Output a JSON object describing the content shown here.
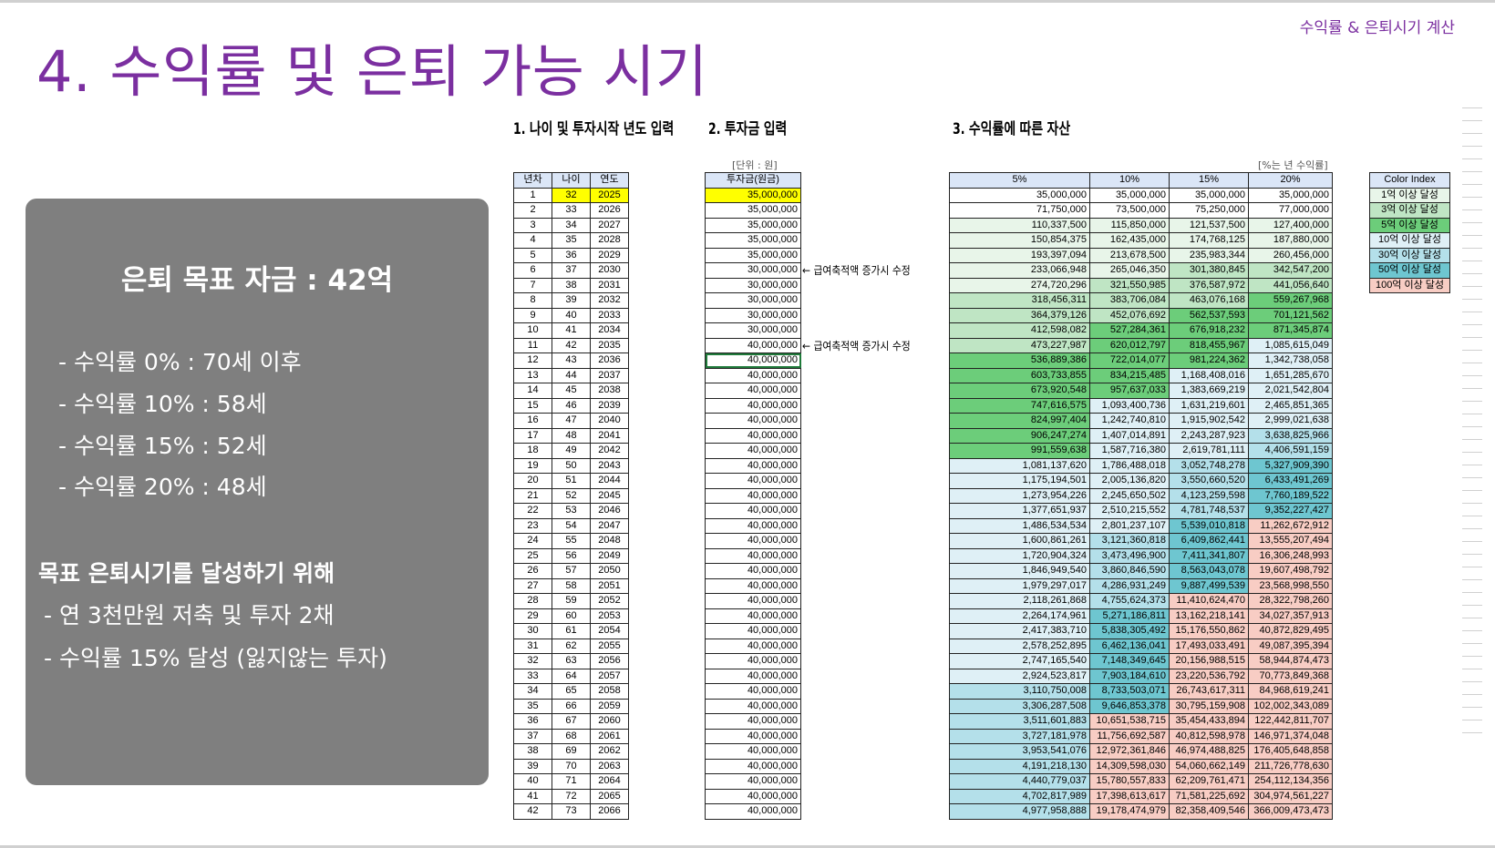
{
  "header": {
    "top_label": "수익률 & 은퇴시기 계산",
    "title": "4. 수익률 및 은퇴 가능 시기"
  },
  "summary": {
    "goal": "은퇴 목표 자금 : 42억",
    "rates": [
      "- 수익률   0% : 70세 이후",
      "- 수익률 10% : 58세",
      "- 수익률 15% : 52세",
      "- 수익률 20% : 48세"
    ],
    "plan_heading": "목표 은퇴시기를 달성하기 위해",
    "plan_items": [
      "- 연 3천만원 저축 및 투자 2채",
      "- 수익률 15% 달성 (잃지않는 투자)"
    ]
  },
  "sections": {
    "s1": "1. 나이 및 투자시작 년도 입력",
    "s2": "2. 투자금 입력",
    "s3": "3. 수익률에 따른 자산",
    "unit": "[단위 : 원]",
    "pct_note": "[%는 년 수익률]"
  },
  "table1": {
    "headers": [
      "년차",
      "나이",
      "연도"
    ]
  },
  "table2": {
    "header": "투자금(원금)",
    "notes": [
      "← 급여축적액 증가시 수정",
      "← 급여축적액 증가시 수정"
    ]
  },
  "table3": {
    "headers": [
      "5%",
      "10%",
      "15%",
      "20%"
    ],
    "rows": [
      [
        "35,000,000",
        "35,000,000",
        "35,000,000",
        "35,000,000"
      ],
      [
        "71,750,000",
        "73,500,000",
        "75,250,000",
        "77,000,000"
      ],
      [
        "110,337,500",
        "115,850,000",
        "121,537,500",
        "127,400,000"
      ],
      [
        "150,854,375",
        "162,435,000",
        "174,768,125",
        "187,880,000"
      ],
      [
        "193,397,094",
        "213,678,500",
        "235,983,344",
        "260,456,000"
      ],
      [
        "233,066,948",
        "265,046,350",
        "301,380,845",
        "342,547,200"
      ],
      [
        "274,720,296",
        "321,550,985",
        "376,587,972",
        "441,056,640"
      ],
      [
        "318,456,311",
        "383,706,084",
        "463,076,168",
        "559,267,968"
      ],
      [
        "364,379,126",
        "452,076,692",
        "562,537,593",
        "701,121,562"
      ],
      [
        "412,598,082",
        "527,284,361",
        "676,918,232",
        "871,345,874"
      ],
      [
        "473,227,987",
        "620,012,797",
        "818,455,967",
        "1,085,615,049"
      ],
      [
        "536,889,386",
        "722,014,077",
        "981,224,362",
        "1,342,738,058"
      ],
      [
        "603,733,855",
        "834,215,485",
        "1,168,408,016",
        "1,651,285,670"
      ],
      [
        "673,920,548",
        "957,637,033",
        "1,383,669,219",
        "2,021,542,804"
      ],
      [
        "747,616,575",
        "1,093,400,736",
        "1,631,219,601",
        "2,465,851,365"
      ],
      [
        "824,997,404",
        "1,242,740,810",
        "1,915,902,542",
        "2,999,021,638"
      ],
      [
        "906,247,274",
        "1,407,014,891",
        "2,243,287,923",
        "3,638,825,966"
      ],
      [
        "991,559,638",
        "1,587,716,380",
        "2,619,781,111",
        "4,406,591,159"
      ],
      [
        "1,081,137,620",
        "1,786,488,018",
        "3,052,748,278",
        "5,327,909,390"
      ],
      [
        "1,175,194,501",
        "2,005,136,820",
        "3,550,660,520",
        "6,433,491,269"
      ],
      [
        "1,273,954,226",
        "2,245,650,502",
        "4,123,259,598",
        "7,760,189,522"
      ],
      [
        "1,377,651,937",
        "2,510,215,552",
        "4,781,748,537",
        "9,352,227,427"
      ],
      [
        "1,486,534,534",
        "2,801,237,107",
        "5,539,010,818",
        "11,262,672,912"
      ],
      [
        "1,600,861,261",
        "3,121,360,818",
        "6,409,862,441",
        "13,555,207,494"
      ],
      [
        "1,720,904,324",
        "3,473,496,900",
        "7,411,341,807",
        "16,306,248,993"
      ],
      [
        "1,846,949,540",
        "3,860,846,590",
        "8,563,043,078",
        "19,607,498,792"
      ],
      [
        "1,979,297,017",
        "4,286,931,249",
        "9,887,499,539",
        "23,568,998,550"
      ],
      [
        "2,118,261,868",
        "4,755,624,373",
        "11,410,624,470",
        "28,322,798,260"
      ],
      [
        "2,264,174,961",
        "5,271,186,811",
        "13,162,218,141",
        "34,027,357,913"
      ],
      [
        "2,417,383,710",
        "5,838,305,492",
        "15,176,550,862",
        "40,872,829,495"
      ],
      [
        "2,578,252,895",
        "6,462,136,041",
        "17,493,033,491",
        "49,087,395,394"
      ],
      [
        "2,747,165,540",
        "7,148,349,645",
        "20,156,988,515",
        "58,944,874,473"
      ],
      [
        "2,924,523,817",
        "7,903,184,610",
        "23,220,536,792",
        "70,773,849,368"
      ],
      [
        "3,110,750,008",
        "8,733,503,071",
        "26,743,617,311",
        "84,968,619,241"
      ],
      [
        "3,306,287,508",
        "9,646,853,378",
        "30,795,159,908",
        "102,002,343,089"
      ],
      [
        "3,511,601,883",
        "10,651,538,715",
        "35,454,433,894",
        "122,442,811,707"
      ],
      [
        "3,727,181,978",
        "11,756,692,587",
        "40,812,598,978",
        "146,971,374,048"
      ],
      [
        "3,953,541,076",
        "12,972,361,846",
        "46,974,488,825",
        "176,405,648,858"
      ],
      [
        "4,191,218,130",
        "14,309,598,030",
        "54,060,662,149",
        "211,726,778,630"
      ],
      [
        "4,440,779,037",
        "15,780,557,833",
        "62,209,761,471",
        "254,112,134,356"
      ],
      [
        "4,702,817,989",
        "17,398,613,617",
        "71,581,225,692",
        "304,974,561,227"
      ],
      [
        "4,977,958,888",
        "19,178,474,979",
        "82,358,409,546",
        "366,009,473,473"
      ]
    ]
  },
  "legend": {
    "header": "Color Index",
    "items": [
      {
        "label": "1억 이상 달성",
        "color": "#e8f5e9"
      },
      {
        "label": "3억 이상 달성",
        "color": "#bfe5c4"
      },
      {
        "label": "5억 이상 달성",
        "color": "#6ccd7a"
      },
      {
        "label": "10억 이상 달성",
        "color": "#dff0f6"
      },
      {
        "label": "30억 이상 달성",
        "color": "#b4e0ea"
      },
      {
        "label": "50억 이상 달성",
        "color": "#6ec6d0"
      },
      {
        "label": "100억 이상 달성",
        "color": "#f8cdc4"
      }
    ]
  },
  "inputs": {
    "start_age": 32,
    "start_year": 2025,
    "first_deposit": "35,000,000"
  }
}
